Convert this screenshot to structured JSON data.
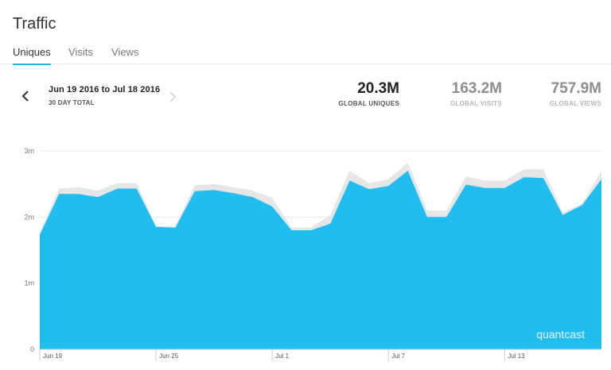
{
  "header": {
    "title": "Traffic"
  },
  "tabs": [
    {
      "label": "Uniques",
      "active": true
    },
    {
      "label": "Visits",
      "active": false
    },
    {
      "label": "Views",
      "active": false
    }
  ],
  "date_nav": {
    "range": "Jun 19 2016 to Jul 18 2016",
    "subtitle": "30 DAY TOTAL",
    "prev_icon": "chevron-left-icon",
    "next_icon": "chevron-right-icon"
  },
  "stats": [
    {
      "value": "20.3M",
      "label": "GLOBAL UNIQUES"
    },
    {
      "value": "163.2M",
      "label": "GLOBAL VISITS"
    },
    {
      "value": "757.9M",
      "label": "GLOBAL VIEWS"
    }
  ],
  "colors": {
    "accent": "#22b3e6",
    "area_fill": "#22bdf0",
    "previous_period": "#e6e6e6",
    "gridline": "#e8e8e8"
  },
  "watermark": "quantcast",
  "chart_data": {
    "type": "area",
    "x": [
      "2016-06-19",
      "2016-06-20",
      "2016-06-21",
      "2016-06-22",
      "2016-06-23",
      "2016-06-24",
      "2016-06-25",
      "2016-06-26",
      "2016-06-27",
      "2016-06-28",
      "2016-06-29",
      "2016-06-30",
      "2016-07-01",
      "2016-07-02",
      "2016-07-03",
      "2016-07-04",
      "2016-07-05",
      "2016-07-06",
      "2016-07-07",
      "2016-07-08",
      "2016-07-09",
      "2016-07-10",
      "2016-07-11",
      "2016-07-12",
      "2016-07-13",
      "2016-07-14",
      "2016-07-15",
      "2016-07-16",
      "2016-07-17",
      "2016-07-18"
    ],
    "x_tick_labels": [
      "Jun 19",
      "Jun 25",
      "Jul 1",
      "Jul 7",
      "Jul 13"
    ],
    "x_tick_dates": [
      "2016-06-19",
      "2016-06-25",
      "2016-07-01",
      "2016-07-07",
      "2016-07-13"
    ],
    "series": [
      {
        "values": [
          1.73,
          2.35,
          2.35,
          2.3,
          2.43,
          2.43,
          1.85,
          1.84,
          2.39,
          2.41,
          2.36,
          2.3,
          2.16,
          1.8,
          1.8,
          1.9,
          2.55,
          2.42,
          2.47,
          2.7,
          2.0,
          2.0,
          2.49,
          2.44,
          2.44,
          2.6,
          2.59,
          2.03,
          2.18,
          2.57
        ]
      },
      {
        "values": [
          1.77,
          2.43,
          2.45,
          2.4,
          2.51,
          2.51,
          1.86,
          1.86,
          2.48,
          2.5,
          2.45,
          2.4,
          2.29,
          1.84,
          1.84,
          2.03,
          2.7,
          2.51,
          2.57,
          2.82,
          2.1,
          2.1,
          2.61,
          2.55,
          2.55,
          2.72,
          2.72,
          2.07,
          2.2,
          2.7
        ]
      }
    ],
    "y_ticks": [
      "0",
      "1m",
      "2m",
      "3m"
    ],
    "ylim": [
      0,
      3
    ],
    "grid": true,
    "xlabel": "",
    "ylabel": ""
  }
}
